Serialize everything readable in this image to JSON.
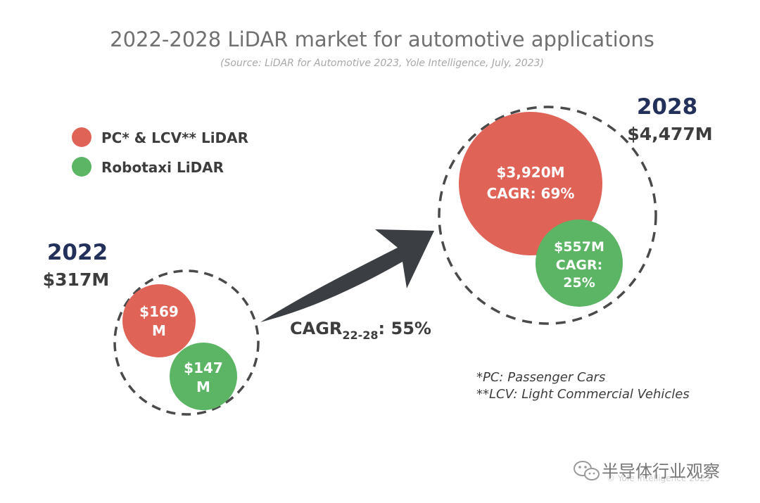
{
  "chart_data": {
    "type": "bubble",
    "title": "2022-2028 LiDAR market for automotive applications",
    "subtitle": "(Source: LiDAR for Automotive 2023, Yole Intelligence, July, 2023)",
    "legend": [
      {
        "label": "PC* & LCV** LiDAR",
        "color": "#e06358"
      },
      {
        "label": "Robotaxi LiDAR",
        "color": "#5cb465"
      }
    ],
    "groups": [
      {
        "year": "2022",
        "total": "$317M",
        "bubbles": [
          {
            "series": "PC* & LCV** LiDAR",
            "value": 169,
            "label_lines": [
              "$169",
              "M"
            ]
          },
          {
            "series": "Robotaxi LiDAR",
            "value": 147,
            "label_lines": [
              "$147",
              "M"
            ]
          }
        ]
      },
      {
        "year": "2028",
        "total": "$4,477M",
        "bubbles": [
          {
            "series": "PC* & LCV** LiDAR",
            "value": 3920,
            "label_lines": [
              "$3,920M",
              "CAGR: 69%"
            ]
          },
          {
            "series": "Robotaxi LiDAR",
            "value": 557,
            "label_lines": [
              "$557M",
              "CAGR:",
              "25%"
            ]
          }
        ]
      }
    ],
    "cagr": {
      "prefix": "CAGR",
      "subscript": "22-28",
      "suffix": ": 55%"
    },
    "footnotes": [
      "*PC: Passenger Cars",
      "**LCV: Light Commercial Vehicles"
    ]
  },
  "colors": {
    "pc_lcv": "#e06358",
    "robotaxi": "#5cb465",
    "year_text": "#22305a",
    "total_text": "#3d3d3d",
    "arrow": "#3b3e42",
    "dashed_ring": "#4a4a4a",
    "title_text": "#707070",
    "subtitle_text": "#a8a8a8"
  },
  "watermark": {
    "text": "半导体行业观察",
    "copyright": "© Yole Intelligence 2023",
    "icon": "wechat-icon"
  }
}
